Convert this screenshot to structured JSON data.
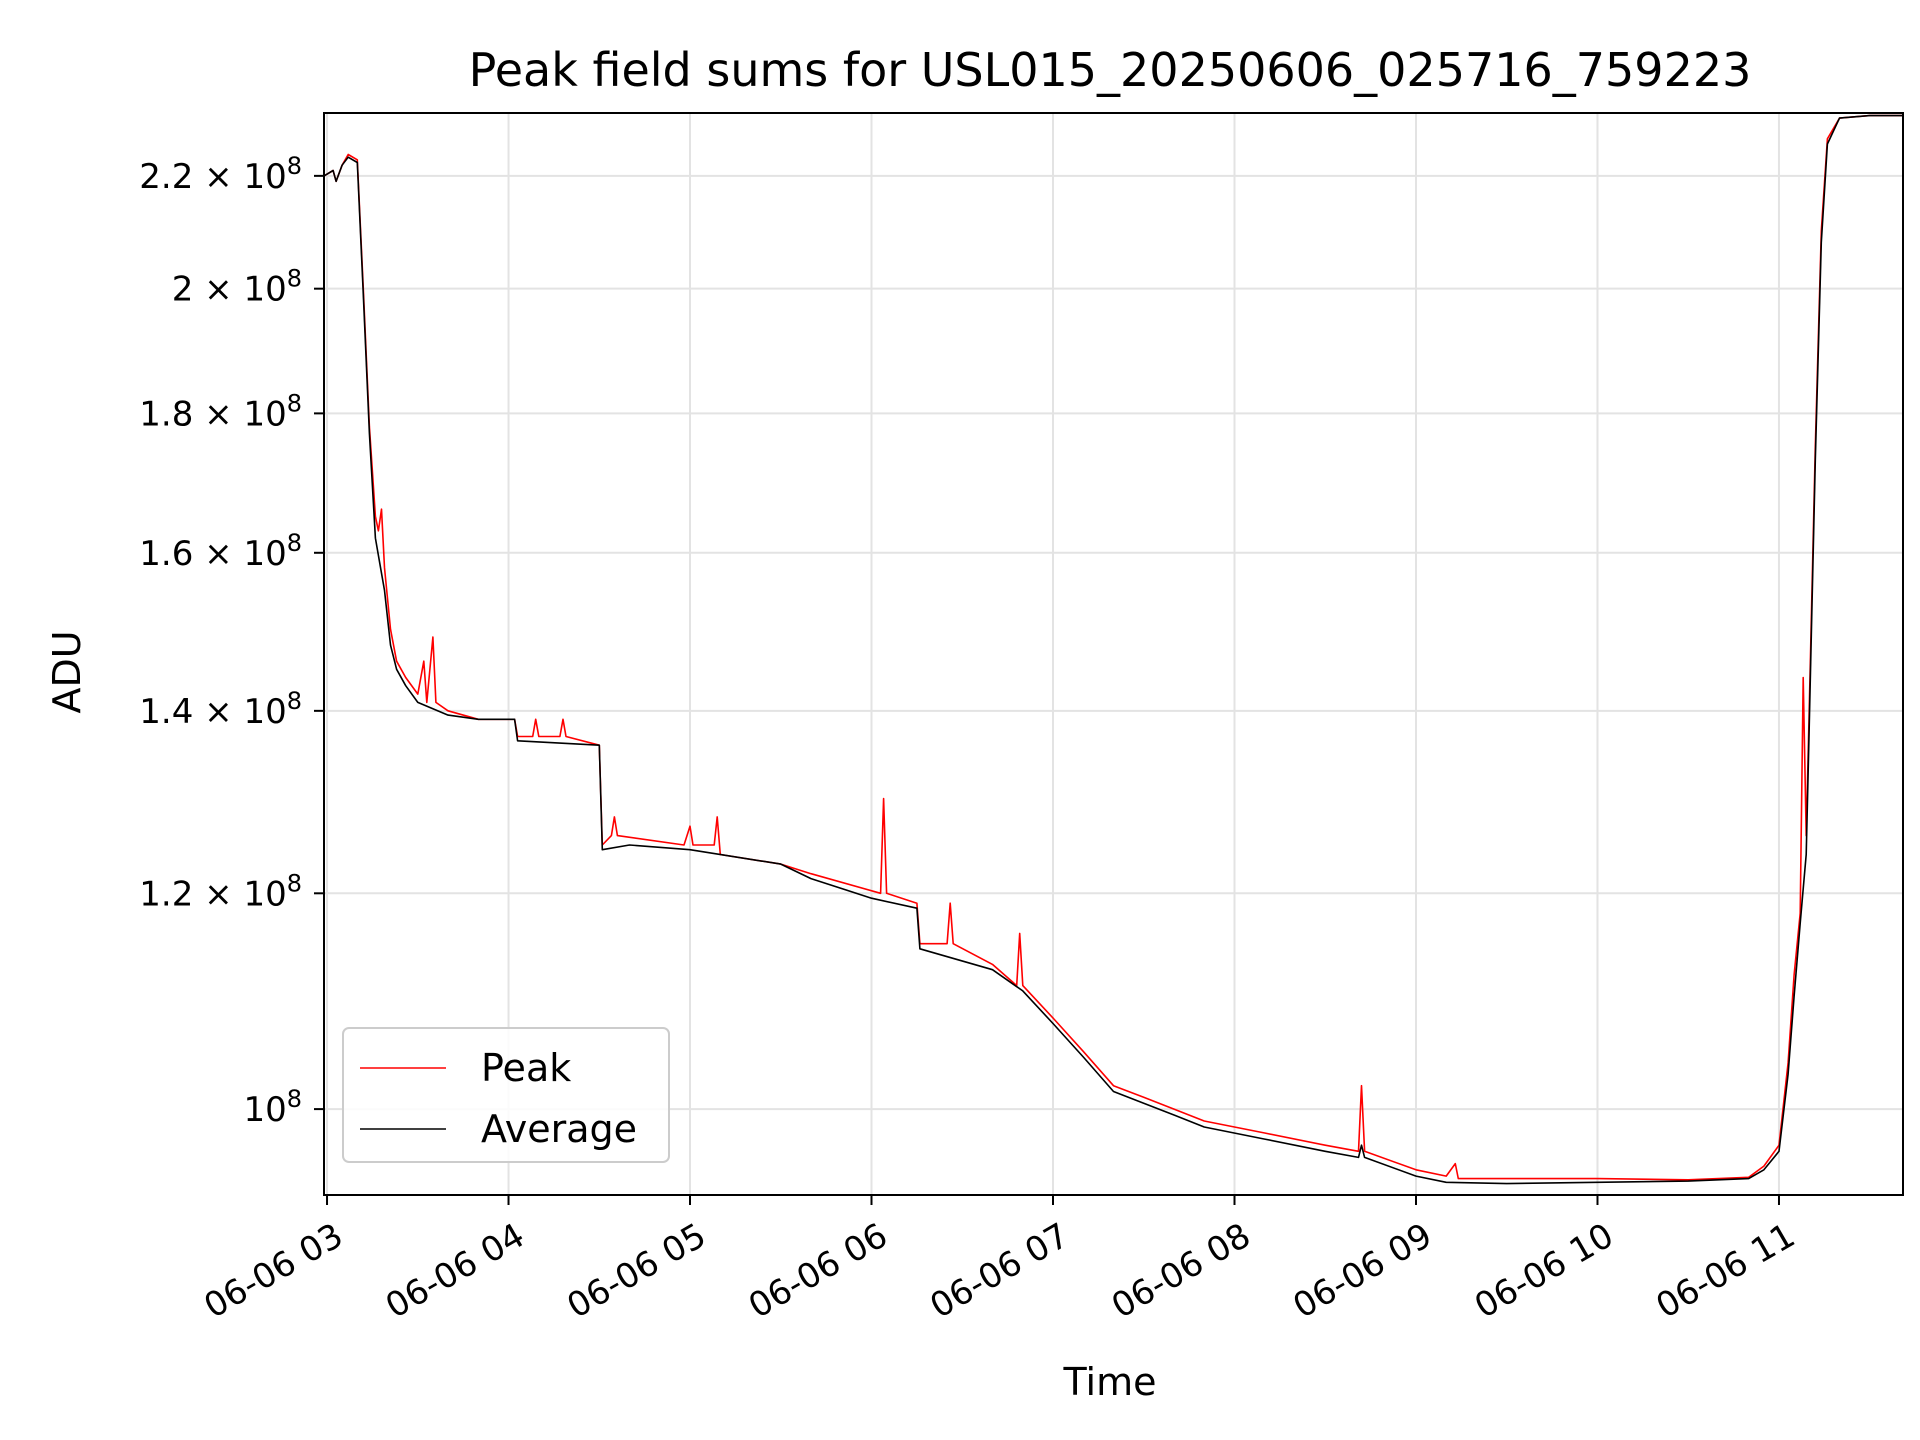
{
  "chart_data": {
    "type": "line",
    "title": "Peak field sums for USL015_20250606_025716_759223",
    "xlabel": "Time",
    "ylabel": "ADU",
    "yscale": "log",
    "ylim": [
      93000000,
      232000000
    ],
    "xlim": [
      "2025-06-06 02:59",
      "2025-06-06 11:41"
    ],
    "grid": true,
    "legend_position": "lower-left",
    "x_ticks": [
      {
        "t": "2025-06-06 03:00",
        "label": "06-06 03"
      },
      {
        "t": "2025-06-06 04:00",
        "label": "06-06 04"
      },
      {
        "t": "2025-06-06 05:00",
        "label": "06-06 05"
      },
      {
        "t": "2025-06-06 06:00",
        "label": "06-06 06"
      },
      {
        "t": "2025-06-06 07:00",
        "label": "06-06 07"
      },
      {
        "t": "2025-06-06 08:00",
        "label": "06-06 08"
      },
      {
        "t": "2025-06-06 09:00",
        "label": "06-06 09"
      },
      {
        "t": "2025-06-06 10:00",
        "label": "06-06 10"
      },
      {
        "t": "2025-06-06 11:00",
        "label": "06-06 11"
      }
    ],
    "y_ticks": [
      {
        "v": 220000000,
        "mant": "2.2",
        "exp": "8"
      },
      {
        "v": 200000000,
        "mant": "2",
        "exp": "8"
      },
      {
        "v": 180000000,
        "mant": "1.8",
        "exp": "8"
      },
      {
        "v": 160000000,
        "mant": "1.6",
        "exp": "8"
      },
      {
        "v": 140000000,
        "mant": "1.4",
        "exp": "8"
      },
      {
        "v": 120000000,
        "mant": "1.2",
        "exp": "8"
      },
      {
        "v": 100000000,
        "mant": "",
        "exp": "8"
      }
    ],
    "series": [
      {
        "name": "Peak",
        "color": "#ff0000",
        "points": [
          [
            "2025-06-06 02:59",
            220000000
          ],
          [
            "2025-06-06 03:02",
            221000000
          ],
          [
            "2025-06-06 03:03",
            219000000
          ],
          [
            "2025-06-06 03:05",
            222000000
          ],
          [
            "2025-06-06 03:07",
            224000000
          ],
          [
            "2025-06-06 03:10",
            223000000
          ],
          [
            "2025-06-06 03:12",
            200000000
          ],
          [
            "2025-06-06 03:14",
            178000000
          ],
          [
            "2025-06-06 03:16",
            165000000
          ],
          [
            "2025-06-06 03:17",
            163000000
          ],
          [
            "2025-06-06 03:18",
            166000000
          ],
          [
            "2025-06-06 03:19",
            158000000
          ],
          [
            "2025-06-06 03:21",
            150000000
          ],
          [
            "2025-06-06 03:23",
            146000000
          ],
          [
            "2025-06-06 03:26",
            144000000
          ],
          [
            "2025-06-06 03:30",
            142000000
          ],
          [
            "2025-06-06 03:32",
            146000000
          ],
          [
            "2025-06-06 03:33",
            141000000
          ],
          [
            "2025-06-06 03:35",
            149000000
          ],
          [
            "2025-06-06 03:36",
            141000000
          ],
          [
            "2025-06-06 03:40",
            140000000
          ],
          [
            "2025-06-06 03:50",
            139000000
          ],
          [
            "2025-06-06 04:02",
            139000000
          ],
          [
            "2025-06-06 04:03",
            137000000
          ],
          [
            "2025-06-06 04:08",
            137000000
          ],
          [
            "2025-06-06 04:09",
            139000000
          ],
          [
            "2025-06-06 04:10",
            137000000
          ],
          [
            "2025-06-06 04:17",
            137000000
          ],
          [
            "2025-06-06 04:18",
            139000000
          ],
          [
            "2025-06-06 04:19",
            137000000
          ],
          [
            "2025-06-06 04:30",
            136000000
          ],
          [
            "2025-06-06 04:31",
            125000000
          ],
          [
            "2025-06-06 04:34",
            126000000
          ],
          [
            "2025-06-06 04:35",
            128000000
          ],
          [
            "2025-06-06 04:36",
            126000000
          ],
          [
            "2025-06-06 04:58",
            125000000
          ],
          [
            "2025-06-06 05:00",
            127000000
          ],
          [
            "2025-06-06 05:01",
            125000000
          ],
          [
            "2025-06-06 05:08",
            125000000
          ],
          [
            "2025-06-06 05:09",
            128000000
          ],
          [
            "2025-06-06 05:10",
            124000000
          ],
          [
            "2025-06-06 05:30",
            123000000
          ],
          [
            "2025-06-06 05:40",
            122000000
          ],
          [
            "2025-06-06 06:03",
            120000000
          ],
          [
            "2025-06-06 06:04",
            130000000
          ],
          [
            "2025-06-06 06:05",
            120000000
          ],
          [
            "2025-06-06 06:15",
            119000000
          ],
          [
            "2025-06-06 06:16",
            115000000
          ],
          [
            "2025-06-06 06:25",
            115000000
          ],
          [
            "2025-06-06 06:26",
            119000000
          ],
          [
            "2025-06-06 06:27",
            115000000
          ],
          [
            "2025-06-06 06:40",
            113000000
          ],
          [
            "2025-06-06 06:48",
            111000000
          ],
          [
            "2025-06-06 06:49",
            116000000
          ],
          [
            "2025-06-06 06:50",
            111000000
          ],
          [
            "2025-06-06 07:00",
            108000000
          ],
          [
            "2025-06-06 07:10",
            105000000
          ],
          [
            "2025-06-06 07:20",
            102000000
          ],
          [
            "2025-06-06 07:30",
            101000000
          ],
          [
            "2025-06-06 07:40",
            100000000
          ],
          [
            "2025-06-06 07:50",
            99000000
          ],
          [
            "2025-06-06 08:10",
            98000000
          ],
          [
            "2025-06-06 08:30",
            97000000
          ],
          [
            "2025-06-06 08:41",
            96500000
          ],
          [
            "2025-06-06 08:42",
            102000000
          ],
          [
            "2025-06-06 08:43",
            96500000
          ],
          [
            "2025-06-06 09:00",
            95000000
          ],
          [
            "2025-06-06 09:10",
            94500000
          ],
          [
            "2025-06-06 09:13",
            95500000
          ],
          [
            "2025-06-06 09:14",
            94300000
          ],
          [
            "2025-06-06 09:30",
            94300000
          ],
          [
            "2025-06-06 10:00",
            94300000
          ],
          [
            "2025-06-06 10:30",
            94200000
          ],
          [
            "2025-06-06 10:50",
            94400000
          ],
          [
            "2025-06-06 10:55",
            95300000
          ],
          [
            "2025-06-06 11:00",
            97000000
          ],
          [
            "2025-06-06 11:03",
            104000000
          ],
          [
            "2025-06-06 11:05",
            112000000
          ],
          [
            "2025-06-06 11:07",
            118000000
          ],
          [
            "2025-06-06 11:08",
            144000000
          ],
          [
            "2025-06-06 11:09",
            126000000
          ],
          [
            "2025-06-06 11:10",
            140000000
          ],
          [
            "2025-06-06 11:12",
            175000000
          ],
          [
            "2025-06-06 11:14",
            210000000
          ],
          [
            "2025-06-06 11:16",
            227000000
          ],
          [
            "2025-06-06 11:20",
            231000000
          ],
          [
            "2025-06-06 11:30",
            231500000
          ],
          [
            "2025-06-06 11:41",
            231500000
          ]
        ]
      },
      {
        "name": "Average",
        "color": "#000000",
        "points": [
          [
            "2025-06-06 02:59",
            220000000
          ],
          [
            "2025-06-06 03:02",
            221000000
          ],
          [
            "2025-06-06 03:03",
            219000000
          ],
          [
            "2025-06-06 03:05",
            222000000
          ],
          [
            "2025-06-06 03:07",
            223500000
          ],
          [
            "2025-06-06 03:10",
            222500000
          ],
          [
            "2025-06-06 03:12",
            199000000
          ],
          [
            "2025-06-06 03:14",
            177000000
          ],
          [
            "2025-06-06 03:16",
            162000000
          ],
          [
            "2025-06-06 03:19",
            155000000
          ],
          [
            "2025-06-06 03:21",
            148000000
          ],
          [
            "2025-06-06 03:23",
            145000000
          ],
          [
            "2025-06-06 03:26",
            143000000
          ],
          [
            "2025-06-06 03:30",
            141000000
          ],
          [
            "2025-06-06 03:40",
            139500000
          ],
          [
            "2025-06-06 03:50",
            139000000
          ],
          [
            "2025-06-06 04:02",
            139000000
          ],
          [
            "2025-06-06 04:03",
            136500000
          ],
          [
            "2025-06-06 04:30",
            136000000
          ],
          [
            "2025-06-06 04:31",
            124500000
          ],
          [
            "2025-06-06 04:40",
            125000000
          ],
          [
            "2025-06-06 05:00",
            124500000
          ],
          [
            "2025-06-06 05:30",
            123000000
          ],
          [
            "2025-06-06 05:40",
            121500000
          ],
          [
            "2025-06-06 06:00",
            119500000
          ],
          [
            "2025-06-06 06:15",
            118500000
          ],
          [
            "2025-06-06 06:16",
            114500000
          ],
          [
            "2025-06-06 06:40",
            112500000
          ],
          [
            "2025-06-06 06:50",
            110500000
          ],
          [
            "2025-06-06 07:00",
            107500000
          ],
          [
            "2025-06-06 07:10",
            104500000
          ],
          [
            "2025-06-06 07:20",
            101500000
          ],
          [
            "2025-06-06 07:30",
            100500000
          ],
          [
            "2025-06-06 07:40",
            99500000
          ],
          [
            "2025-06-06 07:50",
            98500000
          ],
          [
            "2025-06-06 08:10",
            97500000
          ],
          [
            "2025-06-06 08:30",
            96500000
          ],
          [
            "2025-06-06 08:41",
            96000000
          ],
          [
            "2025-06-06 08:42",
            97000000
          ],
          [
            "2025-06-06 08:43",
            96000000
          ],
          [
            "2025-06-06 09:00",
            94500000
          ],
          [
            "2025-06-06 09:10",
            94000000
          ],
          [
            "2025-06-06 09:30",
            93900000
          ],
          [
            "2025-06-06 10:00",
            94000000
          ],
          [
            "2025-06-06 10:30",
            94100000
          ],
          [
            "2025-06-06 10:50",
            94300000
          ],
          [
            "2025-06-06 10:55",
            95000000
          ],
          [
            "2025-06-06 11:00",
            96500000
          ],
          [
            "2025-06-06 11:03",
            103000000
          ],
          [
            "2025-06-06 11:05",
            110000000
          ],
          [
            "2025-06-06 11:07",
            117000000
          ],
          [
            "2025-06-06 11:09",
            124000000
          ],
          [
            "2025-06-06 11:10",
            138000000
          ],
          [
            "2025-06-06 11:12",
            173000000
          ],
          [
            "2025-06-06 11:14",
            208000000
          ],
          [
            "2025-06-06 11:16",
            226000000
          ],
          [
            "2025-06-06 11:20",
            231000000
          ],
          [
            "2025-06-06 11:30",
            231500000
          ],
          [
            "2025-06-06 11:41",
            231500000
          ]
        ]
      }
    ]
  }
}
